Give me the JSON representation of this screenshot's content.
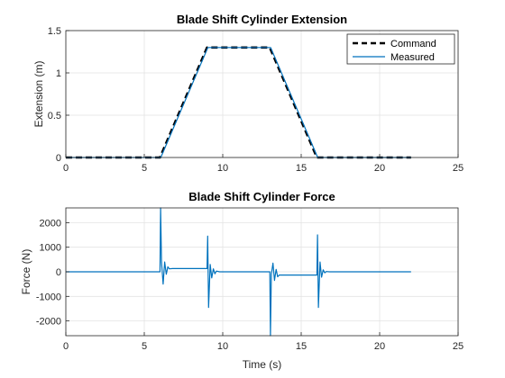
{
  "chart_data": [
    {
      "type": "line",
      "title": "Blade Shift Cylinder Extension",
      "xlabel": "",
      "ylabel": "Extension (m)",
      "xlim": [
        0,
        25
      ],
      "ylim": [
        0,
        1.5
      ],
      "xticks": [
        0,
        5,
        10,
        15,
        20,
        25
      ],
      "yticks": [
        0,
        0.5,
        1,
        1.5
      ],
      "ytick_labels": [
        "0",
        "0.5",
        "1",
        "1.5"
      ],
      "grid": true,
      "legend": "top-right",
      "series": [
        {
          "name": "Command",
          "style": "dashed",
          "color": "#000000",
          "x": [
            0,
            6,
            9,
            13,
            16,
            22
          ],
          "y": [
            0,
            0,
            1.3,
            1.3,
            0,
            0
          ]
        },
        {
          "name": "Measured",
          "style": "solid",
          "color": "#0072bd",
          "x": [
            0,
            6.05,
            9.05,
            13.05,
            16.05,
            22
          ],
          "y": [
            0,
            0,
            1.3,
            1.3,
            0,
            0
          ]
        }
      ]
    },
    {
      "type": "line",
      "title": "Blade Shift Cylinder Force",
      "xlabel": "Time (s)",
      "ylabel": "Force (N)",
      "xlim": [
        0,
        25
      ],
      "ylim": [
        -2600,
        2600
      ],
      "xticks": [
        0,
        5,
        10,
        15,
        20,
        25
      ],
      "yticks": [
        -2000,
        -1000,
        0,
        1000,
        2000
      ],
      "ytick_labels": [
        "-2000",
        "-1000",
        "0",
        "1000",
        "2000"
      ],
      "grid": true,
      "series": [
        {
          "name": "",
          "style": "solid",
          "color": "#0072bd",
          "x": [
            0,
            6.0,
            6.04,
            6.1,
            6.2,
            6.3,
            6.4,
            6.5,
            6.6,
            6.8,
            9.0,
            9.04,
            9.1,
            9.2,
            9.3,
            9.4,
            9.5,
            9.6,
            9.8,
            13.0,
            13.04,
            13.1,
            13.2,
            13.3,
            13.4,
            13.5,
            13.6,
            13.8,
            16.0,
            16.04,
            16.1,
            16.2,
            16.3,
            16.4,
            16.5,
            16.6,
            16.8,
            22.0
          ],
          "y": [
            0,
            0,
            2600,
            400,
            -500,
            400,
            -100,
            200,
            120,
            130,
            130,
            1450,
            -1450,
            300,
            -250,
            120,
            -80,
            30,
            0,
            0,
            -2600,
            -100,
            350,
            -350,
            100,
            -200,
            -130,
            -130,
            -130,
            1500,
            -1450,
            400,
            -220,
            80,
            -40,
            10,
            0,
            0
          ]
        }
      ]
    }
  ]
}
